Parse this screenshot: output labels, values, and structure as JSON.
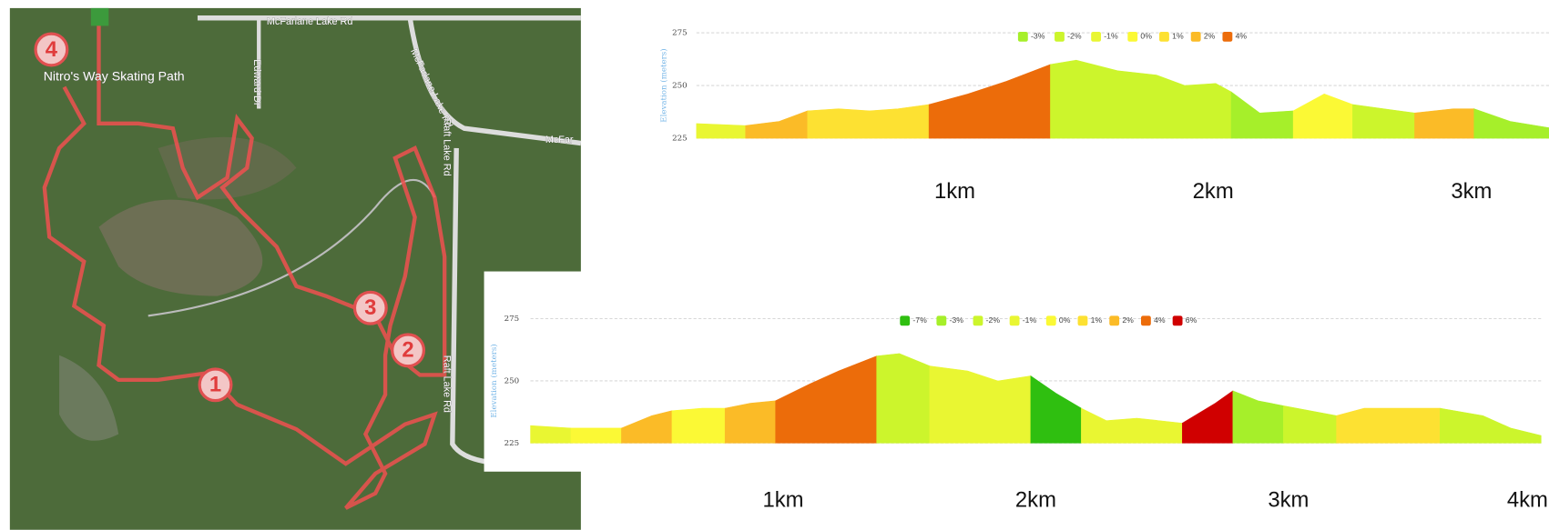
{
  "map": {
    "labels": [
      "McFarlane Lake Rd",
      "Edward Dr",
      "McFarlane Lake Rd",
      "Raft Lake Rd",
      "Nitro's Way Skating Path",
      "McFar",
      "Raft Lake Rd"
    ],
    "markers": [
      "1",
      "2",
      "3",
      "4"
    ]
  },
  "chart_data": [
    {
      "type": "area",
      "ylabel": "Elevation (meters)",
      "legend": [
        {
          "label": "-3%",
          "color": "#a6ef2a"
        },
        {
          "label": "-2%",
          "color": "#ccf52c"
        },
        {
          "label": "-1%",
          "color": "#e9f632"
        },
        {
          "label": "0%",
          "color": "#fbf935"
        },
        {
          "label": "1%",
          "color": "#fde132"
        },
        {
          "label": "2%",
          "color": "#fbbb27"
        },
        {
          "label": "4%",
          "color": "#ec6c0a"
        }
      ],
      "segments": [
        {
          "color": "#e9f632",
          "x": [
            0,
            0.19
          ],
          "values": [
            232,
            231
          ]
        },
        {
          "color": "#fbbb27",
          "x": [
            0.19,
            0.32,
            0.43
          ],
          "values": [
            231,
            233,
            238
          ]
        },
        {
          "color": "#fde132",
          "x": [
            0.43,
            0.55,
            0.67,
            0.78,
            0.9
          ],
          "values": [
            238,
            239,
            238,
            239,
            241
          ]
        },
        {
          "color": "#ec6c0a",
          "x": [
            0.9,
            1.05,
            1.2,
            1.37
          ],
          "values": [
            241,
            246,
            252,
            260
          ]
        },
        {
          "color": "#ccf52c",
          "x": [
            1.37,
            1.47,
            1.63,
            1.78,
            1.89,
            2.01,
            2.07
          ],
          "values": [
            260,
            262,
            257,
            255,
            250,
            251,
            247
          ]
        },
        {
          "color": "#a6ef2a",
          "x": [
            2.07,
            2.18,
            2.31
          ],
          "values": [
            247,
            237,
            238
          ]
        },
        {
          "color": "#fbf935",
          "x": [
            2.31,
            2.43,
            2.54
          ],
          "values": [
            238,
            246,
            241
          ]
        },
        {
          "color": "#ccf52c",
          "x": [
            2.54,
            2.78
          ],
          "values": [
            241,
            237
          ]
        },
        {
          "color": "#fbbb27",
          "x": [
            2.78,
            2.93,
            3.01
          ],
          "values": [
            237,
            239,
            239
          ]
        },
        {
          "color": "#a6ef2a",
          "x": [
            3.01,
            3.15,
            3.3
          ],
          "values": [
            239,
            233,
            230
          ]
        }
      ],
      "xlim": [
        0,
        3.3
      ],
      "xticks": [
        {
          "value": 1,
          "label": "1km"
        },
        {
          "value": 2,
          "label": "2km"
        },
        {
          "value": 3,
          "label": "3km"
        }
      ],
      "ylim": [
        225,
        275
      ],
      "yticks": [
        225,
        250,
        275
      ],
      "grid": true
    },
    {
      "type": "area",
      "ylabel": "Elevation (meters)",
      "legend": [
        {
          "label": "-7%",
          "color": "#2fbf10"
        },
        {
          "label": "-3%",
          "color": "#a6ef2a"
        },
        {
          "label": "-2%",
          "color": "#ccf52c"
        },
        {
          "label": "-1%",
          "color": "#e9f632"
        },
        {
          "label": "0%",
          "color": "#fbf935"
        },
        {
          "label": "1%",
          "color": "#fde132"
        },
        {
          "label": "2%",
          "color": "#fbbb27"
        },
        {
          "label": "4%",
          "color": "#ec6c0a"
        },
        {
          "label": "6%",
          "color": "#d00000"
        }
      ],
      "segments": [
        {
          "color": "#e9f632",
          "x": [
            0,
            0.16
          ],
          "values": [
            232,
            231
          ]
        },
        {
          "color": "#fbf935",
          "x": [
            0.16,
            0.36
          ],
          "values": [
            231,
            231
          ]
        },
        {
          "color": "#fbbb27",
          "x": [
            0.36,
            0.48,
            0.56
          ],
          "values": [
            231,
            236,
            238
          ]
        },
        {
          "color": "#fbf935",
          "x": [
            0.56,
            0.68,
            0.77
          ],
          "values": [
            238,
            239,
            239
          ]
        },
        {
          "color": "#fbbb27",
          "x": [
            0.77,
            0.87,
            0.97
          ],
          "values": [
            239,
            241,
            242
          ]
        },
        {
          "color": "#ec6c0a",
          "x": [
            0.97,
            1.11,
            1.22,
            1.37
          ],
          "values": [
            242,
            249,
            254,
            260
          ]
        },
        {
          "color": "#ccf52c",
          "x": [
            1.37,
            1.46,
            1.58
          ],
          "values": [
            260,
            261,
            256
          ]
        },
        {
          "color": "#e9f632",
          "x": [
            1.58,
            1.73,
            1.85,
            1.98
          ],
          "values": [
            256,
            254,
            250,
            252
          ]
        },
        {
          "color": "#2fbf10",
          "x": [
            1.98,
            2.08,
            2.18
          ],
          "values": [
            252,
            245,
            239
          ]
        },
        {
          "color": "#e9f632",
          "x": [
            2.18,
            2.28,
            2.4,
            2.58
          ],
          "values": [
            239,
            234,
            235,
            233
          ]
        },
        {
          "color": "#d00000",
          "x": [
            2.58,
            2.71,
            2.78
          ],
          "values": [
            233,
            241,
            246
          ]
        },
        {
          "color": "#a6ef2a",
          "x": [
            2.78,
            2.88,
            2.98
          ],
          "values": [
            246,
            242,
            240
          ]
        },
        {
          "color": "#ccf52c",
          "x": [
            2.98,
            3.19
          ],
          "values": [
            240,
            236
          ]
        },
        {
          "color": "#fde132",
          "x": [
            3.19,
            3.3,
            3.45,
            3.6
          ],
          "values": [
            236,
            239,
            239,
            239
          ]
        },
        {
          "color": "#ccf52c",
          "x": [
            3.6,
            3.77,
            3.88,
            4
          ],
          "values": [
            239,
            236,
            231,
            228
          ]
        }
      ],
      "xlim": [
        0,
        4
      ],
      "xticks": [
        {
          "value": 1,
          "label": "1km"
        },
        {
          "value": 2,
          "label": "2km"
        },
        {
          "value": 3,
          "label": "3km"
        },
        {
          "value": 4,
          "label": "4km"
        }
      ],
      "ylim": [
        225,
        275
      ],
      "yticks": [
        225,
        250,
        275
      ],
      "grid": true
    }
  ]
}
